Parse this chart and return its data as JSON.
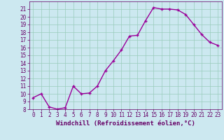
{
  "x": [
    0,
    1,
    2,
    3,
    4,
    5,
    6,
    7,
    8,
    9,
    10,
    11,
    12,
    13,
    14,
    15,
    16,
    17,
    18,
    19,
    20,
    21,
    22,
    23
  ],
  "y": [
    9.5,
    10.0,
    8.3,
    8.0,
    8.2,
    11.0,
    10.0,
    10.1,
    11.0,
    13.0,
    14.3,
    15.7,
    17.5,
    17.6,
    19.5,
    21.2,
    21.0,
    21.0,
    20.9,
    20.3,
    19.0,
    17.7,
    16.7,
    16.3
  ],
  "line_color": "#990099",
  "marker": "+",
  "marker_size": 3,
  "bg_color": "#cce8f0",
  "grid_color": "#99ccbb",
  "xlabel": "Windchill (Refroidissement éolien,°C)",
  "xlabel_fontsize": 6.5,
  "xlabel_color": "#660066",
  "tick_color": "#660066",
  "ylim": [
    8,
    22
  ],
  "xlim": [
    -0.5,
    23.5
  ],
  "yticks": [
    8,
    9,
    10,
    11,
    12,
    13,
    14,
    15,
    16,
    17,
    18,
    19,
    20,
    21
  ],
  "xticks": [
    0,
    1,
    2,
    3,
    4,
    5,
    6,
    7,
    8,
    9,
    10,
    11,
    12,
    13,
    14,
    15,
    16,
    17,
    18,
    19,
    20,
    21,
    22,
    23
  ],
  "tick_fontsize": 5.5,
  "line_width": 1.0,
  "markeredgewidth": 1.0
}
